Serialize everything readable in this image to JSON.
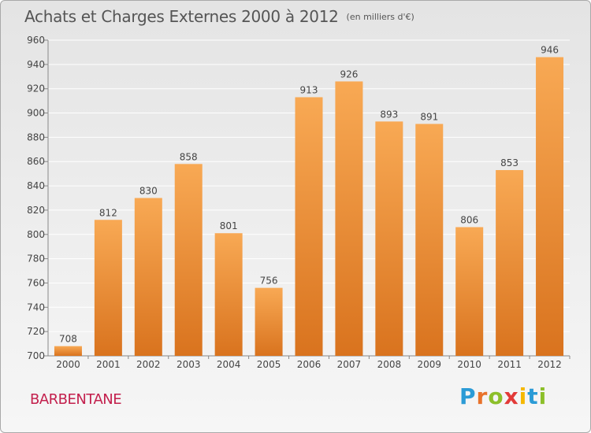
{
  "header": {
    "title": "Achats et Charges Externes 2000 à 2012",
    "unit": "(en milliers d'€)"
  },
  "footer": {
    "commune": "BARBENTANE",
    "brand_letters": [
      "P",
      "r",
      "o",
      "x",
      "i",
      "t",
      "i"
    ]
  },
  "colors": {
    "bar_top": "#f8a954",
    "bar_bottom": "#d9731e",
    "grid": "#ffffff",
    "axis_text": "#444444",
    "commune": "#c3204d"
  },
  "chart_data": {
    "type": "bar",
    "title": "Achats et Charges Externes 2000 à 2012",
    "subtitle": "(en milliers d'€)",
    "categories": [
      "2000",
      "2001",
      "2002",
      "2003",
      "2004",
      "2005",
      "2006",
      "2007",
      "2008",
      "2009",
      "2010",
      "2011",
      "2012"
    ],
    "values": [
      708,
      812,
      830,
      858,
      801,
      756,
      913,
      926,
      893,
      891,
      806,
      853,
      946
    ],
    "xlabel": "",
    "ylabel": "",
    "ylim": [
      700,
      960
    ],
    "yticks": [
      700,
      720,
      740,
      760,
      780,
      800,
      820,
      840,
      860,
      880,
      900,
      920,
      940,
      960
    ],
    "grid": true,
    "legend": "none"
  }
}
